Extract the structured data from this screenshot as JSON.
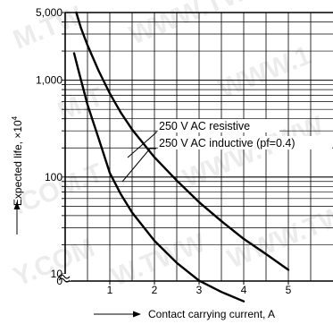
{
  "chart_data": {
    "type": "line",
    "title": "",
    "xlabel": "Contact carrying current, A",
    "ylabel_main": "Expected life, ×10",
    "ylabel_exp": "4",
    "xlim": [
      0,
      6
    ],
    "ylim": [
      10,
      5000
    ],
    "y_scale": "log",
    "y_axis_break": true,
    "grid": true,
    "x_ticks": [
      1,
      2,
      3,
      4,
      5
    ],
    "x_tick_labels": [
      "1",
      "2",
      "3",
      "4",
      "5"
    ],
    "y_tick_labels": [
      {
        "value": 5000,
        "label": "5,000"
      },
      {
        "value": 1000,
        "label": "1,000"
      },
      {
        "value": 100,
        "label": "100"
      },
      {
        "value": 10,
        "label": "10"
      }
    ],
    "y_break_label": "0",
    "series": [
      {
        "name": "250 V AC resistive",
        "color": "#000000",
        "x": [
          0.25,
          0.35,
          0.5,
          0.75,
          1.0,
          1.25,
          1.5,
          2.0,
          2.5,
          3.0,
          3.5,
          4.0,
          4.5,
          5.0
        ],
        "y": [
          5000,
          3500,
          2300,
          1250,
          730,
          460,
          310,
          160,
          92,
          55,
          35,
          23,
          16,
          11
        ]
      },
      {
        "name": "250 V AC inductive (pf=0.4)",
        "color": "#000000",
        "x": [
          0.2,
          0.3,
          0.5,
          0.75,
          1.0,
          1.25,
          1.5,
          2.0,
          2.5,
          3.0,
          3.5,
          4.0
        ],
        "y": [
          1900,
          1250,
          560,
          250,
          110,
          66,
          43,
          22,
          13,
          8.5,
          6.5,
          5.2
        ]
      }
    ]
  },
  "watermarks": [
    "M.TW",
    "WWW.TWW",
    "M.T",
    "WWW.1",
    ".COM.T",
    "WWW.TWW",
    "Y.COM",
    "W.TWW",
    "WWW.TWW"
  ]
}
